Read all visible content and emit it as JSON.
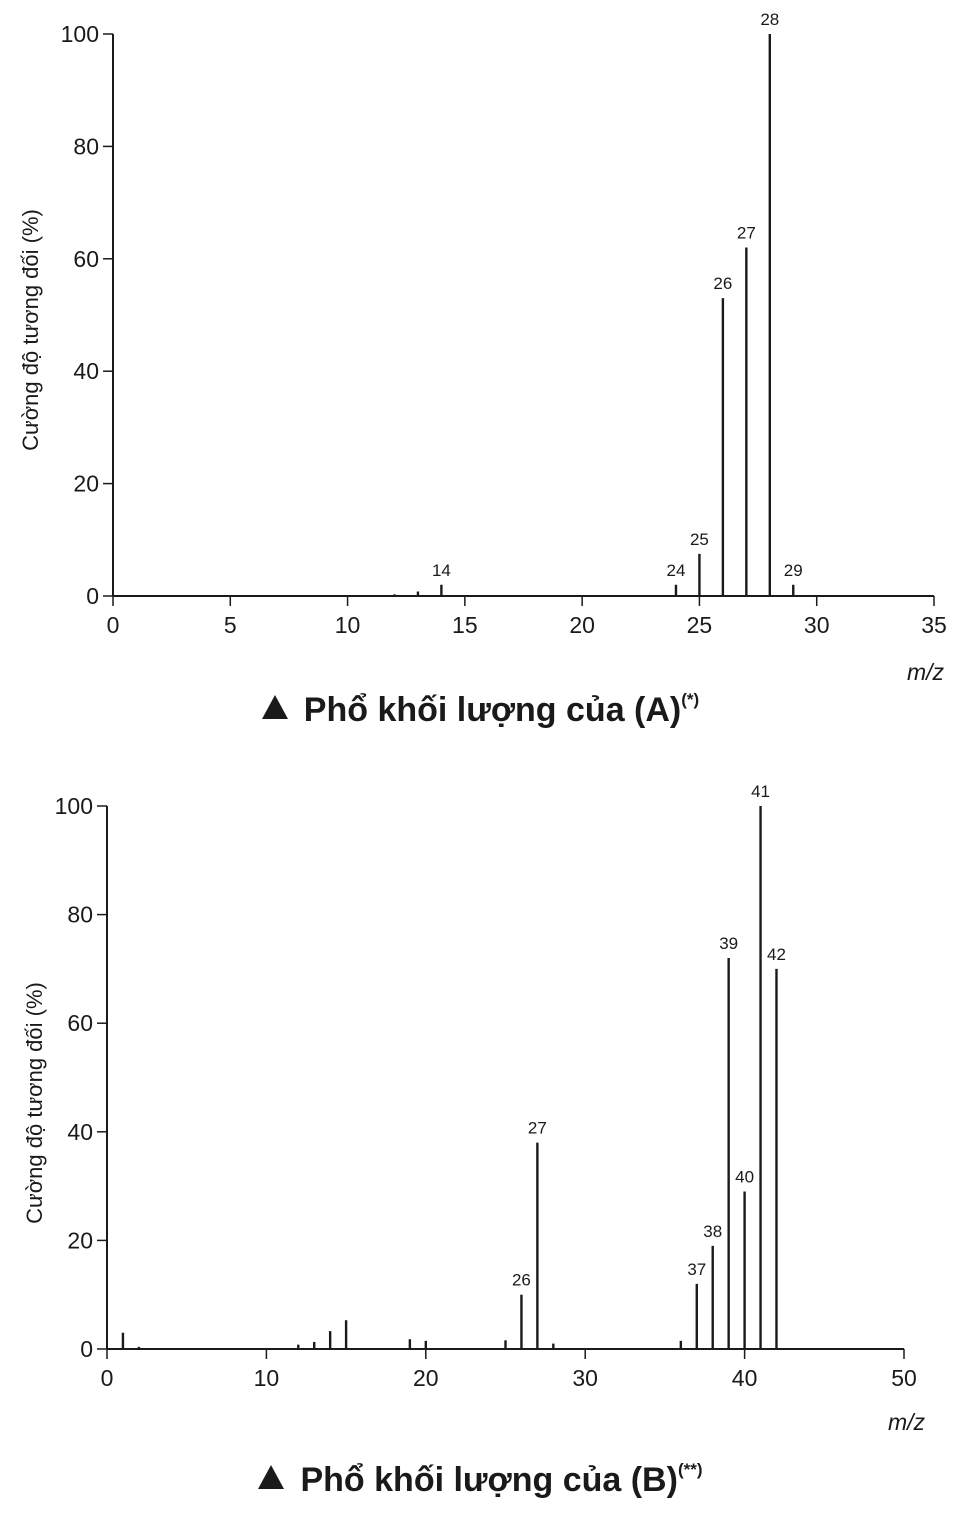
{
  "chart_data": [
    {
      "type": "bar",
      "title": "Phổ khối lượng của (A)",
      "title_sup": "(*)",
      "ylabel": "Cường độ tương đối (%)",
      "xlabel": "m/z",
      "xlim": [
        0,
        35
      ],
      "ylim": [
        0,
        100
      ],
      "xticks": [
        0,
        5,
        10,
        15,
        20,
        25,
        30,
        35
      ],
      "yticks": [
        0,
        20,
        40,
        60,
        80,
        100
      ],
      "grid": false,
      "peaks": [
        {
          "x": 12,
          "y": 0.3,
          "label": ""
        },
        {
          "x": 13,
          "y": 0.8,
          "label": ""
        },
        {
          "x": 14,
          "y": 2,
          "label": "14"
        },
        {
          "x": 24,
          "y": 2,
          "label": "24"
        },
        {
          "x": 25,
          "y": 7.5,
          "label": "25"
        },
        {
          "x": 26,
          "y": 53,
          "label": "26"
        },
        {
          "x": 27,
          "y": 62,
          "label": "27"
        },
        {
          "x": 28,
          "y": 100,
          "label": "28"
        },
        {
          "x": 29,
          "y": 2,
          "label": "29"
        }
      ]
    },
    {
      "type": "bar",
      "title": "Phổ khối lượng của (B)",
      "title_sup": "(**)",
      "ylabel": "Cường độ tương đối (%)",
      "xlabel": "m/z",
      "xlim": [
        0,
        50
      ],
      "ylim": [
        0,
        100
      ],
      "xticks": [
        0,
        10,
        20,
        30,
        40,
        50
      ],
      "yticks": [
        0,
        20,
        40,
        60,
        80,
        100
      ],
      "grid": false,
      "peaks": [
        {
          "x": 1,
          "y": 3,
          "label": ""
        },
        {
          "x": 2,
          "y": 0.4,
          "label": ""
        },
        {
          "x": 12,
          "y": 0.8,
          "label": ""
        },
        {
          "x": 13,
          "y": 1.3,
          "label": ""
        },
        {
          "x": 14,
          "y": 3.3,
          "label": ""
        },
        {
          "x": 15,
          "y": 5.3,
          "label": ""
        },
        {
          "x": 19,
          "y": 1.8,
          "label": ""
        },
        {
          "x": 20,
          "y": 1.5,
          "label": ""
        },
        {
          "x": 25,
          "y": 1.6,
          "label": ""
        },
        {
          "x": 26,
          "y": 10,
          "label": "26"
        },
        {
          "x": 27,
          "y": 38,
          "label": "27"
        },
        {
          "x": 28,
          "y": 1,
          "label": ""
        },
        {
          "x": 36,
          "y": 1.5,
          "label": ""
        },
        {
          "x": 37,
          "y": 12,
          "label": "37"
        },
        {
          "x": 38,
          "y": 19,
          "label": "38"
        },
        {
          "x": 39,
          "y": 72,
          "label": "39"
        },
        {
          "x": 40,
          "y": 29,
          "label": "40"
        },
        {
          "x": 41,
          "y": 100,
          "label": "41"
        },
        {
          "x": 42,
          "y": 70,
          "label": "42"
        }
      ]
    }
  ]
}
